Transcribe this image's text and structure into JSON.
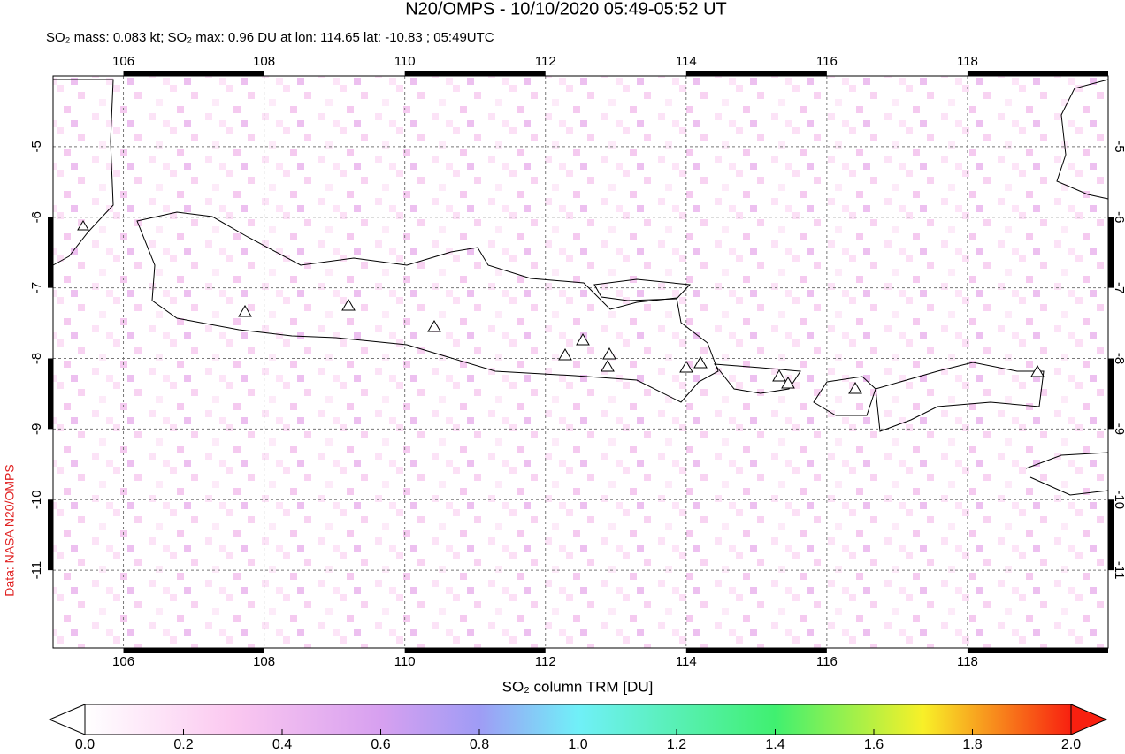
{
  "title": "N20/OMPS - 10/10/2020 05:49-05:52 UT",
  "subtitle": "SO₂ mass: 0.083 kt; SO₂ max: 0.96 DU at lon: 114.65 lat: -10.83 ; 05:49UTC",
  "credit": "Data: NASA N20/OMPS",
  "map": {
    "xlim": [
      105,
      120
    ],
    "ylim": [
      -12.1,
      -4
    ],
    "xticks": [
      106,
      108,
      110,
      112,
      114,
      116,
      118
    ],
    "yticks": [
      -5,
      -6,
      -7,
      -8,
      -9,
      -10,
      -11
    ]
  },
  "colorbar": {
    "label": "SO₂ column TRM [DU]",
    "lim": [
      0,
      2
    ],
    "ticks": [
      {
        "value": 0,
        "label": "0.0"
      },
      {
        "value": 0.2,
        "label": "0.2"
      },
      {
        "value": 0.4,
        "label": "0.4"
      },
      {
        "value": 0.6,
        "label": "0.6"
      },
      {
        "value": 0.8,
        "label": "0.8"
      },
      {
        "value": 1,
        "label": "1.0"
      },
      {
        "value": 1.2,
        "label": "1.2"
      },
      {
        "value": 1.4,
        "label": "1.4"
      },
      {
        "value": 1.6,
        "label": "1.6"
      },
      {
        "value": 1.8,
        "label": "1.8"
      },
      {
        "value": 2,
        "label": "2.0"
      }
    ]
  }
}
